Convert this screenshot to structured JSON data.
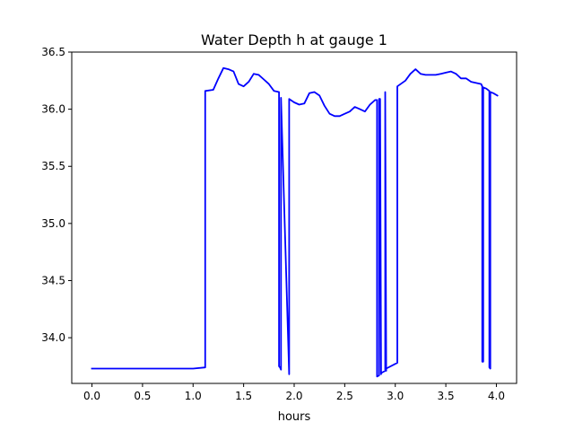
{
  "chart_data": {
    "type": "line",
    "title": "Water Depth h at gauge 1",
    "xlabel": "hours",
    "ylabel": "",
    "xlim": [
      -0.2,
      4.2
    ],
    "ylim": [
      33.6,
      36.5
    ],
    "x_ticks": [
      0.0,
      0.5,
      1.0,
      1.5,
      2.0,
      2.5,
      3.0,
      3.5,
      4.0
    ],
    "x_tick_labels": [
      "0.0",
      "0.5",
      "1.0",
      "1.5",
      "2.0",
      "2.5",
      "3.0",
      "3.5",
      "4.0"
    ],
    "y_ticks": [
      34.0,
      34.5,
      35.0,
      35.5,
      36.0,
      36.5
    ],
    "y_tick_labels": [
      "34.0",
      "34.5",
      "35.0",
      "35.5",
      "36.0",
      "36.5"
    ],
    "grid": false,
    "legend": "none",
    "series": [
      {
        "color": "#0000ff",
        "x": [
          0.0,
          1.0,
          1.12,
          1.12,
          1.2,
          1.25,
          1.3,
          1.35,
          1.4,
          1.45,
          1.5,
          1.55,
          1.6,
          1.65,
          1.7,
          1.75,
          1.8,
          1.85,
          1.85,
          1.86,
          1.87,
          1.87,
          1.95,
          1.95,
          2.0,
          2.05,
          2.1,
          2.15,
          2.2,
          2.25,
          2.3,
          2.35,
          2.4,
          2.45,
          2.5,
          2.55,
          2.6,
          2.65,
          2.7,
          2.75,
          2.8,
          2.82,
          2.82,
          2.84,
          2.84,
          2.85,
          2.86,
          2.86,
          2.9,
          2.9,
          2.91,
          2.91,
          3.02,
          3.02,
          3.1,
          3.15,
          3.2,
          3.25,
          3.3,
          3.35,
          3.4,
          3.45,
          3.5,
          3.55,
          3.6,
          3.65,
          3.7,
          3.75,
          3.8,
          3.85,
          3.86,
          3.86,
          3.87,
          3.87,
          3.9,
          3.93,
          3.93,
          3.94,
          3.94,
          3.97,
          4.01
        ],
        "y": [
          33.73,
          33.73,
          33.74,
          36.16,
          36.17,
          36.27,
          36.36,
          36.35,
          36.33,
          36.22,
          36.2,
          36.24,
          36.31,
          36.3,
          36.26,
          36.22,
          36.16,
          36.15,
          33.75,
          33.74,
          33.72,
          36.1,
          33.68,
          36.09,
          36.06,
          36.04,
          36.05,
          36.14,
          36.15,
          36.12,
          36.03,
          35.96,
          35.94,
          35.94,
          35.96,
          35.98,
          36.02,
          36.0,
          35.98,
          36.04,
          36.08,
          36.08,
          33.66,
          33.67,
          36.09,
          36.09,
          33.68,
          33.69,
          33.71,
          36.15,
          33.71,
          33.73,
          33.78,
          36.2,
          36.25,
          36.31,
          36.35,
          36.31,
          36.3,
          36.3,
          36.3,
          36.31,
          36.32,
          36.33,
          36.31,
          36.27,
          36.27,
          36.24,
          36.23,
          36.22,
          36.2,
          33.79,
          33.79,
          36.19,
          36.18,
          36.16,
          33.74,
          33.73,
          36.15,
          36.14,
          36.12
        ]
      }
    ]
  }
}
